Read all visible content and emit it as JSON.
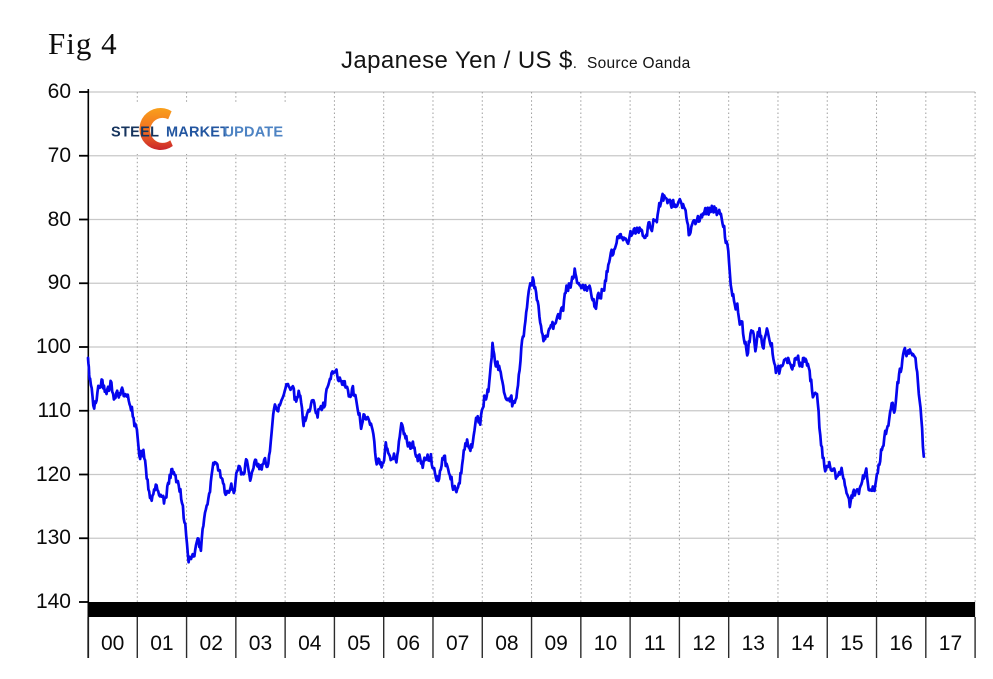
{
  "figure_label": "Fig 4",
  "title": {
    "main": "Japanese Yen / US $",
    "dot": ".",
    "source": "Source Oanda"
  },
  "logo": {
    "steel": "STEEL",
    "market": "MARKET",
    "update": "UPDATE",
    "steel_color": "#16345e",
    "market_color": "#2356a0",
    "update_color": "#4d83c3",
    "ring_gradient": [
      "#f9a01b",
      "#f26d21",
      "#c9242b"
    ]
  },
  "colors": {
    "line": "#0505ee",
    "h_gridline": "#c8c8c8",
    "v_gridline": "#9d9d9d",
    "axis": "#000000",
    "x_axis_bar": "#000000",
    "text": "#0a0a0a"
  },
  "chart_data": {
    "type": "line",
    "title": "Japanese Yen / US $",
    "source_note": "Source Oanda",
    "y_axis": {
      "min": 60,
      "max": 140,
      "ticks": [
        60,
        70,
        80,
        90,
        100,
        110,
        120,
        130,
        140
      ],
      "increases_downward": true
    },
    "x_axis": {
      "start_year": 2000,
      "end_year": 2017,
      "tick_labels": [
        "00",
        "01",
        "02",
        "03",
        "04",
        "05",
        "06",
        "07",
        "08",
        "09",
        "10",
        "11",
        "12",
        "13",
        "14",
        "15",
        "16",
        "17"
      ]
    },
    "grid": {
      "horizontal": "solid",
      "vertical": "dashed-yearly"
    },
    "legend": "none",
    "series": [
      {
        "name": "Japanese Yen per US Dollar",
        "color": "#0505ee",
        "interval": "monthly (first value = Jan 1 2000 spot, then monthly averages Jan 2000 - Dec 2016)",
        "values": [
          101.7,
          105.2,
          109.4,
          106.6,
          105.6,
          108.2,
          106.1,
          108.1,
          108.0,
          106.7,
          108.4,
          109.0,
          112.2,
          117.1,
          116.1,
          121.2,
          123.8,
          121.8,
          122.2,
          124.6,
          121.5,
          118.9,
          121.3,
          122.3,
          127.6,
          132.7,
          133.5,
          131.1,
          131.0,
          126.4,
          123.3,
          118.0,
          119.0,
          120.9,
          123.9,
          121.6,
          122.2,
          118.8,
          119.3,
          118.5,
          119.9,
          117.4,
          118.3,
          118.7,
          118.6,
          115.1,
          109.6,
          109.2,
          107.9,
          106.4,
          106.5,
          108.5,
          107.3,
          112.3,
          109.4,
          109.3,
          110.2,
          110.1,
          108.9,
          104.9,
          103.8,
          103.3,
          104.9,
          105.3,
          107.2,
          106.6,
          108.6,
          111.9,
          110.7,
          111.2,
          114.9,
          118.5,
          118.5,
          115.5,
          117.8,
          117.3,
          117.1,
          111.8,
          114.6,
          115.7,
          115.9,
          117.2,
          118.7,
          117.3,
          117.3,
          120.5,
          120.5,
          117.3,
          118.9,
          120.8,
          122.6,
          121.6,
          116.7,
          115.0,
          115.8,
          111.2,
          112.3,
          107.6,
          107.2,
          99.8,
          102.6,
          104.1,
          106.9,
          106.8,
          109.3,
          106.7,
          100.2,
          96.9,
          89.8,
          89.5,
          92.5,
          97.8,
          98.9,
          96.4,
          96.6,
          94.5,
          94.9,
          91.4,
          90.4,
          88.3,
          89.9,
          91.1,
          90.1,
          90.7,
          93.4,
          91.8,
          90.9,
          87.5,
          85.4,
          84.4,
          81.8,
          82.5,
          83.4,
          82.6,
          82.5,
          81.7,
          83.3,
          81.2,
          80.5,
          79.4,
          77.1,
          76.8,
          76.4,
          77.5,
          77.8,
          76.9,
          78.5,
          82.4,
          81.4,
          79.7,
          79.3,
          79.0,
          78.7,
          78.2,
          78.9,
          81.0,
          83.6,
          89.2,
          93.1,
          94.8,
          97.7,
          101.0,
          97.5,
          99.7,
          97.8,
          99.2,
          97.8,
          100.0,
          103.5,
          103.9,
          102.1,
          102.3,
          102.5,
          101.8,
          102.1,
          101.7,
          102.9,
          107.2,
          108.0,
          116.2,
          119.4,
          118.3,
          118.8,
          120.4,
          119.6,
          121.0,
          124.5,
          123.5,
          123.2,
          120.1,
          120.0,
          122.6,
          121.8,
          118.2,
          115.0,
          113.0,
          109.7,
          109.2,
          104.5,
          101.5,
          100.2,
          101.0,
          101.8,
          108.0,
          117.2
        ]
      }
    ]
  }
}
